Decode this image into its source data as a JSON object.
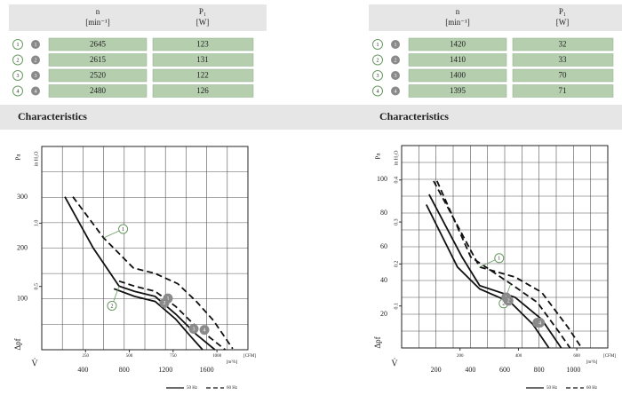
{
  "tables": [
    {
      "headers": [
        {
          "symbol": "n",
          "unit": "[min⁻¹]"
        },
        {
          "symbol": "P₁",
          "unit": "[W]"
        }
      ],
      "rows": [
        [
          "1",
          2645,
          123
        ],
        [
          "2",
          2615,
          131
        ],
        [
          "3",
          2520,
          122
        ],
        [
          "4",
          2480,
          126
        ]
      ]
    },
    {
      "headers": [
        {
          "symbol": "n",
          "unit": "[min⁻¹]"
        },
        {
          "symbol": "P₁",
          "unit": "[W]"
        }
      ],
      "rows": [
        [
          "1",
          1420,
          32
        ],
        [
          "2",
          1410,
          33
        ],
        [
          "3",
          1400,
          70
        ],
        [
          "4",
          1395,
          71
        ]
      ]
    }
  ],
  "section_titles": [
    "Characteristics",
    "Characteristics"
  ],
  "chart_data": [
    {
      "type": "line",
      "y_label": "Pa",
      "y2_label": "in H₂O",
      "y_symbol": "Δpf",
      "x_symbol": "V̇",
      "x_unit": "[m³/h]",
      "x2_unit": "[CFM]",
      "xlim": [
        0,
        2000
      ],
      "xticks": [
        400,
        800,
        1200,
        1600
      ],
      "x2lim": [
        0,
        1177
      ],
      "x2ticks": [
        250,
        500,
        750,
        1000
      ],
      "ylim": [
        0,
        400
      ],
      "yticks": [
        100,
        200,
        300
      ],
      "y2lim": [
        0,
        1.606
      ],
      "y2ticks": [
        0.5,
        {
          "value": 1,
          "label": "1.0"
        }
      ],
      "grid": true,
      "series": [
        {
          "name": "1",
          "dashed": true,
          "x": [
            302,
            600,
            888,
            1100,
            1319,
            1500,
            1664,
            1853
          ],
          "values": [
            301,
            220,
            161,
            150,
            130,
            95,
            58,
            2
          ]
        },
        {
          "name": "2",
          "dashed": false,
          "x": [
            224,
            500,
            750,
            900,
            1100,
            1300,
            1500,
            1680
          ],
          "values": [
            301,
            200,
            125,
            115,
            105,
            70,
            30,
            0
          ]
        },
        {
          "name": "3",
          "dashed": true,
          "x": [
            750,
            900,
            1100,
            1300,
            1500,
            1780
          ],
          "values": [
            135,
            125,
            115,
            85,
            45,
            0
          ]
        },
        {
          "name": "4",
          "dashed": false,
          "x": [
            700,
            900,
            1100,
            1300,
            1450,
            1560
          ],
          "values": [
            120,
            105,
            95,
            60,
            25,
            0
          ]
        }
      ],
      "points": [
        {
          "label": "1",
          "x": 1224,
          "y": 101
        },
        {
          "label": "2",
          "x": 1190,
          "y": 92
        },
        {
          "label": "3",
          "x": 1474,
          "y": 41
        },
        {
          "label": "4",
          "x": 1578,
          "y": 39
        }
      ],
      "legend": [
        {
          "label": "50 Hz",
          "dashed": false
        },
        {
          "label": "60 Hz",
          "dashed": true
        }
      ]
    },
    {
      "type": "line",
      "y_label": "Pa",
      "y2_label": "in H₂O",
      "y_symbol": "Δpf",
      "x_symbol": "V̇",
      "x_unit": "[m³/h]",
      "x2_unit": "[CFM]",
      "xlim": [
        0,
        1200
      ],
      "xticks": [
        200,
        400,
        600,
        800,
        1000
      ],
      "x2lim": [
        0,
        706
      ],
      "x2ticks": [
        200,
        400,
        600
      ],
      "ylim": [
        0,
        120
      ],
      "yticks": [
        20,
        40,
        60,
        80,
        100
      ],
      "y2lim": [
        0,
        0.482
      ],
      "y2ticks": [
        0.1,
        0.2,
        0.3,
        0.4
      ],
      "grid": true,
      "series": [
        {
          "name": "1",
          "dashed": true,
          "x": [
            186,
            454,
            661,
            815,
            970,
            1048
          ],
          "values": [
            99,
            48,
            42,
            33,
            12,
            0
          ]
        },
        {
          "name": "2",
          "dashed": true,
          "x": [
            206,
            402,
            635,
            790,
            919,
            980
          ],
          "values": [
            99,
            54,
            38,
            27,
            9,
            0
          ]
        },
        {
          "name": "3",
          "dashed": false,
          "x": [
            160,
            351,
            454,
            661,
            815,
            929
          ],
          "values": [
            91,
            54,
            37,
            30,
            17,
            0
          ]
        },
        {
          "name": "4",
          "dashed": false,
          "x": [
            144,
            325,
            454,
            635,
            764,
            857
          ],
          "values": [
            85,
            48,
            35,
            27,
            14,
            0
          ]
        }
      ],
      "points": [
        {
          "label": "1",
          "x": 609,
          "y": 30
        },
        {
          "label": "2",
          "x": 622,
          "y": 28
        },
        {
          "label": "3",
          "x": 790,
          "y": 15
        },
        {
          "label": "4",
          "x": 805,
          "y": 15
        }
      ],
      "legend": [
        {
          "label": "50 Hz",
          "dashed": false
        },
        {
          "label": "60 Hz",
          "dashed": true
        }
      ]
    }
  ]
}
